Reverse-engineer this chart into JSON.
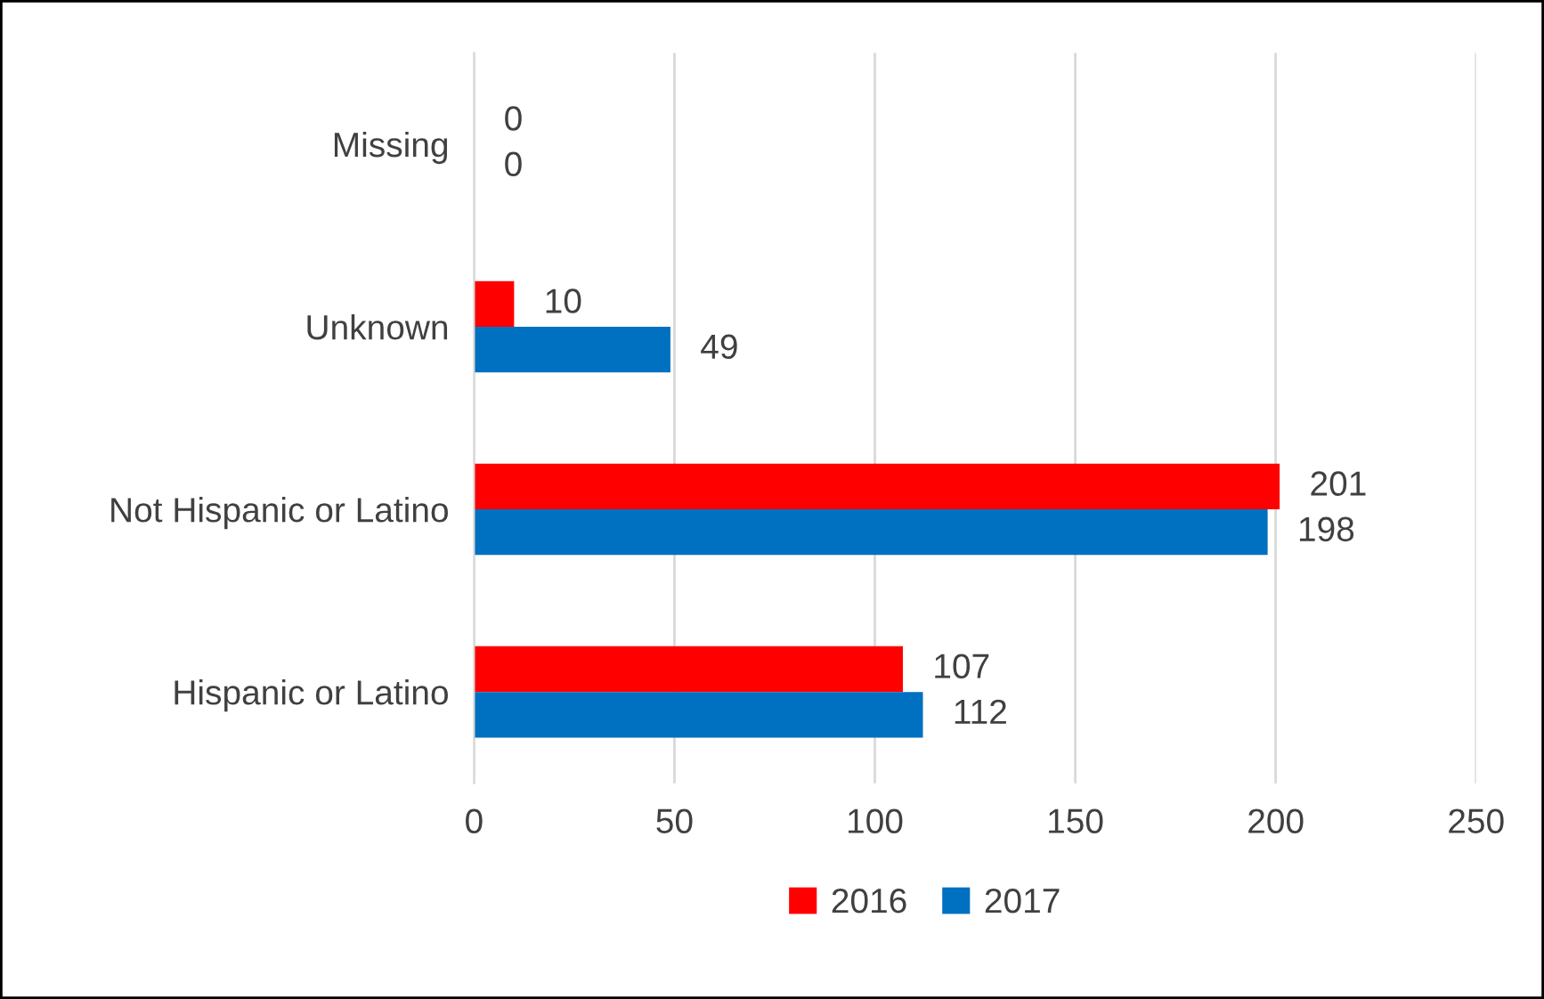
{
  "chart_data": {
    "type": "bar",
    "orientation": "horizontal",
    "categories": [
      "Missing",
      "Unknown",
      "Not Hispanic or Latino",
      "Hispanic or Latino"
    ],
    "series": [
      {
        "name": "2016",
        "color": "#ff0000",
        "values": [
          0,
          10,
          201,
          107
        ]
      },
      {
        "name": "2017",
        "color": "#0070c0",
        "values": [
          0,
          49,
          198,
          112
        ]
      }
    ],
    "xlim": [
      0,
      250
    ],
    "xticks": [
      0,
      50,
      100,
      150,
      200,
      250
    ],
    "grid": "x",
    "legend": "bottom",
    "data_labels": true
  }
}
